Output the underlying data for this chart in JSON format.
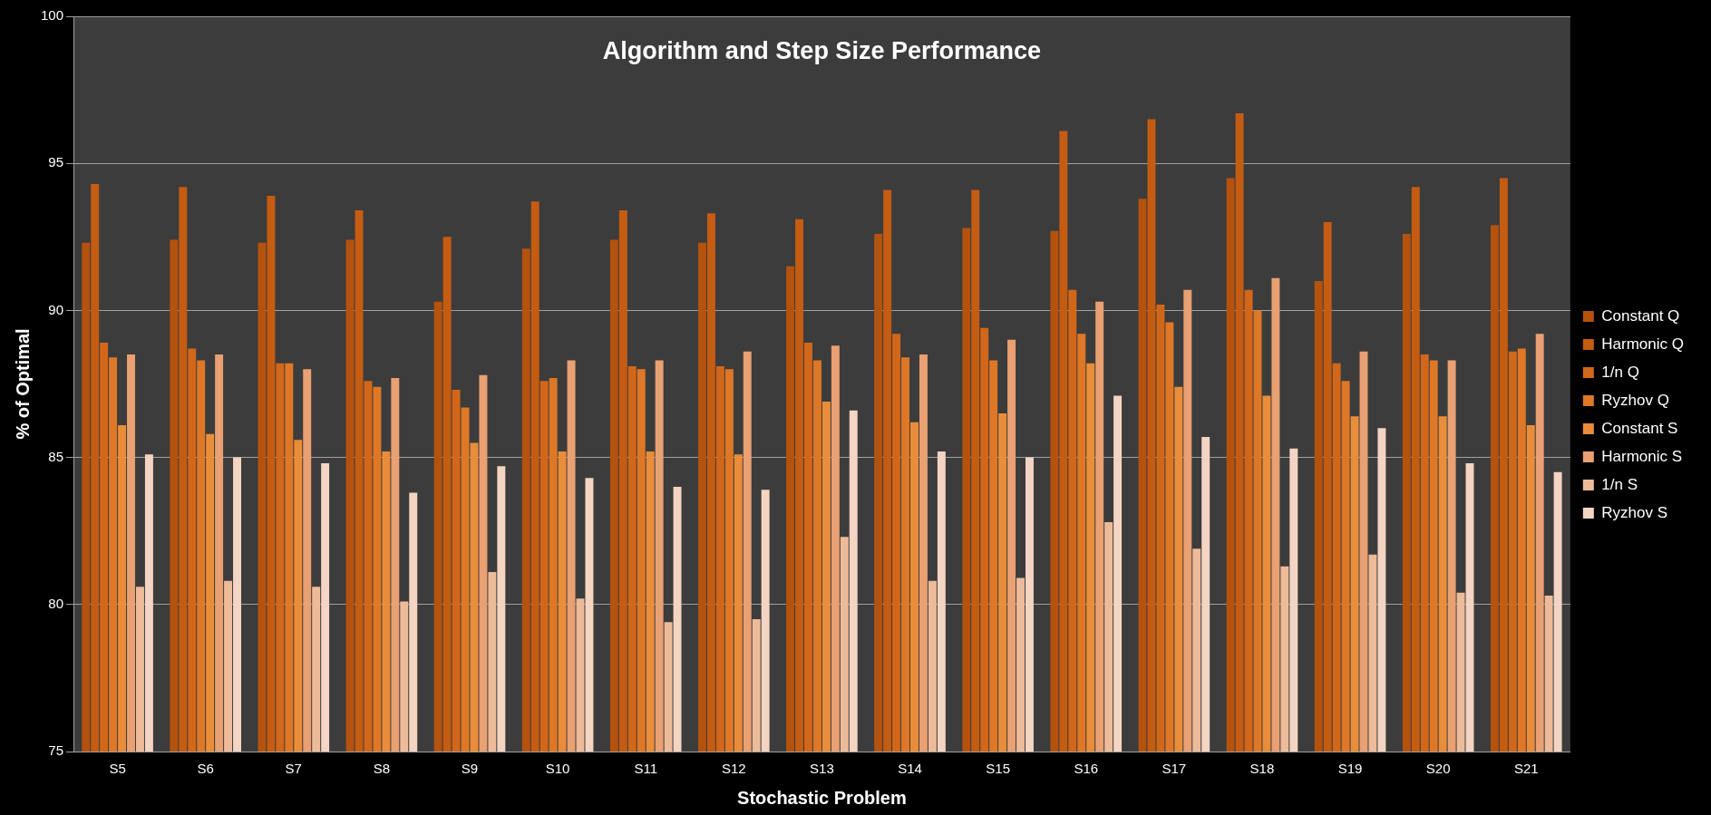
{
  "chart_data": {
    "type": "bar",
    "title": "Algorithm and Step Size Performance",
    "xlabel": "Stochastic Problem",
    "ylabel": "% of Optimal",
    "categories": [
      "S5",
      "S6",
      "S7",
      "S8",
      "S9",
      "S10",
      "S11",
      "S12",
      "S13",
      "S14",
      "S15",
      "S16",
      "S17",
      "S18",
      "S19",
      "S20",
      "S21"
    ],
    "series": [
      {
        "name": "Constant Q",
        "color": "#b4520e",
        "values": [
          92.3,
          92.4,
          92.3,
          92.4,
          90.3,
          92.1,
          92.4,
          92.3,
          91.5,
          92.6,
          92.8,
          92.7,
          93.8,
          94.5,
          91.0,
          92.6,
          92.9
        ]
      },
      {
        "name": "Harmonic Q",
        "color": "#c45c12",
        "values": [
          94.3,
          94.2,
          93.9,
          93.4,
          92.5,
          93.7,
          93.4,
          93.3,
          93.1,
          94.1,
          94.1,
          96.1,
          96.5,
          96.7,
          93.0,
          94.2,
          94.5
        ]
      },
      {
        "name": "1/n Q",
        "color": "#d2671a",
        "values": [
          88.9,
          88.7,
          88.2,
          87.6,
          87.3,
          87.6,
          88.1,
          88.1,
          88.9,
          89.2,
          89.4,
          90.7,
          90.2,
          90.7,
          88.2,
          88.5,
          88.6
        ]
      },
      {
        "name": "Ryzhov Q",
        "color": "#df7826",
        "values": [
          88.4,
          88.3,
          88.2,
          87.4,
          86.7,
          87.7,
          88.0,
          88.0,
          88.3,
          88.4,
          88.3,
          89.2,
          89.6,
          90.0,
          87.6,
          88.3,
          88.7
        ]
      },
      {
        "name": "Constant S",
        "color": "#ea8d3a",
        "values": [
          86.1,
          85.8,
          85.6,
          85.2,
          85.5,
          85.2,
          85.2,
          85.1,
          86.9,
          86.2,
          86.5,
          88.2,
          87.4,
          87.1,
          86.4,
          86.4,
          86.1
        ]
      },
      {
        "name": "Harmonic S",
        "color": "#e9a072",
        "values": [
          88.5,
          88.5,
          88.0,
          87.7,
          87.8,
          88.3,
          88.3,
          88.6,
          88.8,
          88.5,
          89.0,
          90.3,
          90.7,
          91.1,
          88.6,
          88.3,
          89.2
        ]
      },
      {
        "name": "1/n S",
        "color": "#eebb99",
        "values": [
          80.6,
          80.8,
          80.6,
          80.1,
          81.1,
          80.2,
          79.4,
          79.5,
          82.3,
          80.8,
          80.9,
          82.8,
          81.9,
          81.3,
          81.7,
          80.4,
          80.3
        ]
      },
      {
        "name": "Ryzhov S",
        "color": "#f4d4c2",
        "values": [
          85.1,
          85.0,
          84.8,
          83.8,
          84.7,
          84.3,
          84.0,
          83.9,
          86.6,
          85.2,
          85.0,
          87.1,
          85.7,
          85.3,
          86.0,
          84.8,
          84.5
        ]
      }
    ],
    "ylim": [
      75,
      100
    ],
    "yticks": [
      75,
      80,
      85,
      90,
      95,
      100
    ],
    "grid": "y",
    "legend": "right"
  }
}
